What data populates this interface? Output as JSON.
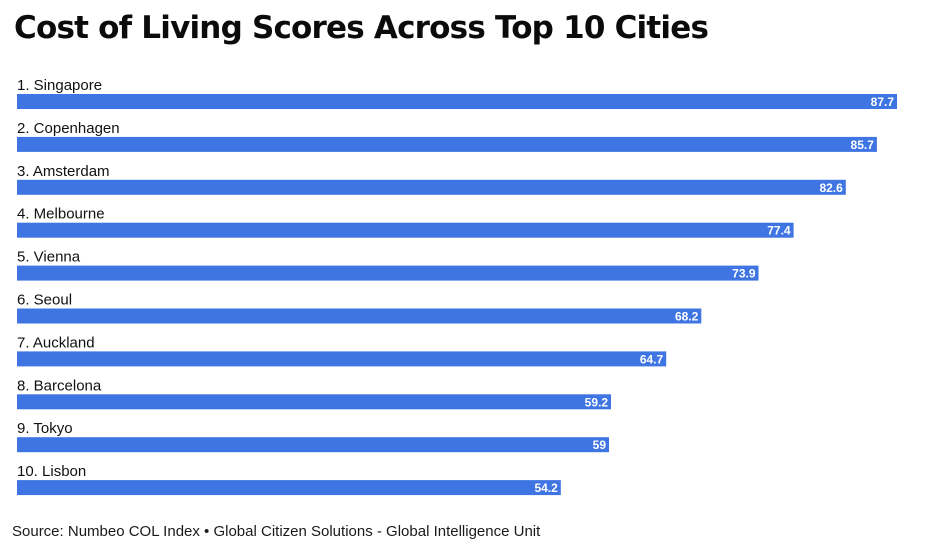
{
  "title": "Cost of Living Scores Across Top 10 Cities",
  "source": "Source: Numbeo COL Index • Global Citizen Solutions - Global Intelligence Unit",
  "colors": {
    "bar": "#3f75e2",
    "value_label": "#ffffff",
    "text": "#111111"
  },
  "chart_data": {
    "type": "bar",
    "orientation": "horizontal",
    "categories": [
      "1. Singapore",
      "2. Copenhagen",
      "3. Amsterdam",
      "4. Melbourne",
      "5. Vienna",
      "6. Seoul",
      "7. Auckland",
      "8. Barcelona",
      "9. Tokyo",
      "10. Lisbon"
    ],
    "value_labels": [
      "87.7",
      "85.7",
      "82.6",
      "77.4",
      "73.9",
      "68.2",
      "64.7",
      "59.2",
      "59",
      "54.2"
    ],
    "values": [
      87.7,
      85.7,
      82.6,
      77.4,
      73.9,
      68.2,
      64.7,
      59.2,
      59,
      54.2
    ],
    "title": "Cost of Living Scores Across Top 10 Cities",
    "xlabel": "",
    "ylabel": "",
    "xlim": [
      0,
      89
    ],
    "grid": false,
    "legend": "none"
  }
}
